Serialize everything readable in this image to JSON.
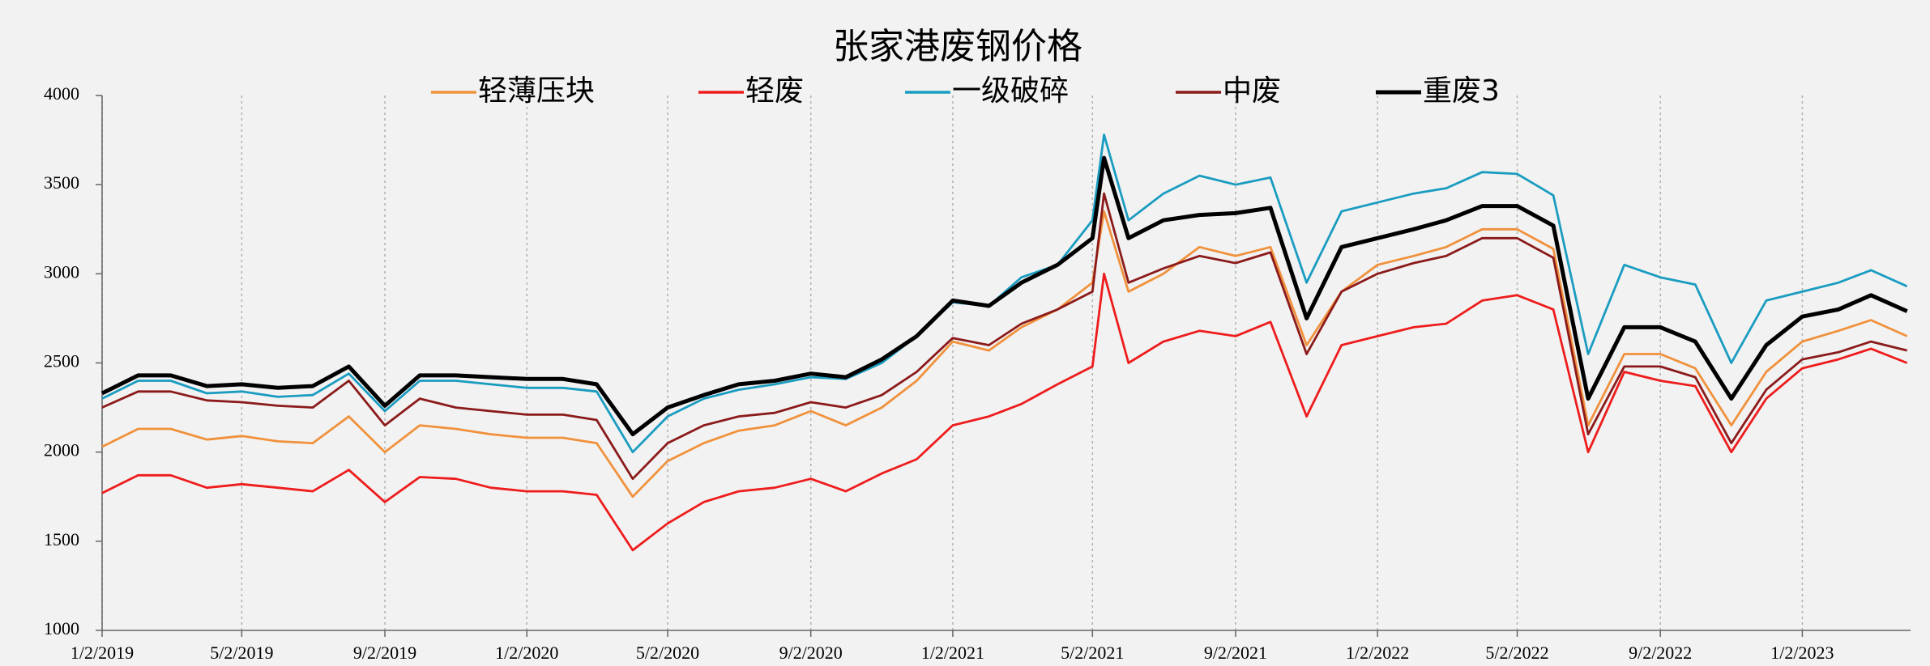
{
  "chart_data": {
    "type": "line",
    "title": "张家港废钢价格",
    "x": [
      "1/2/2019",
      "2/2/2019",
      "3/2/2019",
      "4/2/2019",
      "5/2/2019",
      "6/2/2019",
      "7/2/2019",
      "8/2/2019",
      "9/2/2019",
      "10/2/2019",
      "11/2/2019",
      "12/2/2019",
      "1/2/2020",
      "2/2/2020",
      "3/2/2020",
      "4/2/2020",
      "5/2/2020",
      "6/2/2020",
      "7/2/2020",
      "8/2/2020",
      "9/2/2020",
      "10/2/2020",
      "11/2/2020",
      "12/2/2020",
      "1/2/2021",
      "2/2/2021",
      "3/2/2021",
      "4/2/2021",
      "5/2/2021",
      "5/12/2021",
      "6/2/2021",
      "7/2/2021",
      "8/2/2021",
      "9/2/2021",
      "10/2/2021",
      "11/2/2021",
      "12/2/2021",
      "1/2/2022",
      "2/2/2022",
      "3/2/2022",
      "4/2/2022",
      "5/2/2022",
      "6/2/2022",
      "7/2/2022",
      "8/2/2022",
      "9/2/2022",
      "10/2/2022",
      "11/2/2022",
      "12/2/2022",
      "1/2/2023",
      "2/2/2023",
      "3/2/2023",
      "4/2/2023"
    ],
    "series": [
      {
        "name": "轻薄压块",
        "color": "#f0913c",
        "values": [
          2030,
          2130,
          2130,
          2070,
          2090,
          2060,
          2050,
          2200,
          2000,
          2150,
          2130,
          2100,
          2080,
          2080,
          2050,
          1750,
          1950,
          2050,
          2120,
          2150,
          2230,
          2150,
          2250,
          2400,
          2620,
          2570,
          2700,
          2800,
          2950,
          3350,
          2900,
          3000,
          3150,
          3100,
          3150,
          2600,
          2900,
          3050,
          3100,
          3150,
          3250,
          3250,
          3140,
          2150,
          2550,
          2550,
          2470,
          2150,
          2450,
          2620,
          2680,
          2740,
          2650
        ]
      },
      {
        "name": "轻废",
        "color": "#ee1c1c",
        "values": [
          1770,
          1870,
          1870,
          1800,
          1820,
          1800,
          1780,
          1900,
          1720,
          1860,
          1850,
          1800,
          1780,
          1780,
          1760,
          1450,
          1600,
          1720,
          1780,
          1800,
          1850,
          1780,
          1880,
          1960,
          2150,
          2200,
          2270,
          2380,
          2480,
          3000,
          2500,
          2620,
          2680,
          2650,
          2730,
          2200,
          2600,
          2650,
          2700,
          2720,
          2850,
          2880,
          2800,
          2000,
          2450,
          2400,
          2370,
          2000,
          2300,
          2470,
          2520,
          2580,
          2500
        ]
      },
      {
        "name": "一级破碎",
        "color": "#1a9cc0",
        "values": [
          2300,
          2400,
          2400,
          2330,
          2340,
          2310,
          2320,
          2440,
          2230,
          2400,
          2400,
          2380,
          2360,
          2360,
          2340,
          2000,
          2200,
          2300,
          2350,
          2380,
          2420,
          2410,
          2500,
          2650,
          2840,
          2820,
          2980,
          3050,
          3300,
          3780,
          3300,
          3450,
          3550,
          3500,
          3540,
          2950,
          3350,
          3400,
          3450,
          3480,
          3570,
          3560,
          3440,
          2550,
          3050,
          2980,
          2940,
          2500,
          2850,
          2900,
          2950,
          3020,
          2930
        ]
      },
      {
        "name": "中废",
        "color": "#8b1a1a",
        "values": [
          2250,
          2340,
          2340,
          2290,
          2280,
          2260,
          2250,
          2400,
          2150,
          2300,
          2250,
          2230,
          2210,
          2210,
          2180,
          1850,
          2050,
          2150,
          2200,
          2220,
          2280,
          2250,
          2320,
          2450,
          2640,
          2600,
          2720,
          2800,
          2900,
          3450,
          2950,
          3030,
          3100,
          3060,
          3120,
          2550,
          2900,
          3000,
          3060,
          3100,
          3200,
          3200,
          3090,
          2100,
          2480,
          2480,
          2420,
          2050,
          2350,
          2520,
          2560,
          2620,
          2570
        ]
      },
      {
        "name": "重废3",
        "color": "#000000",
        "values": [
          2330,
          2430,
          2430,
          2370,
          2380,
          2360,
          2370,
          2480,
          2260,
          2430,
          2430,
          2420,
          2410,
          2410,
          2380,
          2100,
          2250,
          2320,
          2380,
          2400,
          2440,
          2420,
          2520,
          2650,
          2850,
          2820,
          2950,
          3050,
          3200,
          3650,
          3200,
          3300,
          3330,
          3340,
          3370,
          2750,
          3150,
          3200,
          3250,
          3300,
          3380,
          3380,
          3270,
          2300,
          2700,
          2700,
          2620,
          2300,
          2600,
          2760,
          2800,
          2880,
          2790
        ]
      }
    ],
    "xlim": [
      "1/2/2019",
      "4/5/2023"
    ],
    "xticks": [
      "1/2/2019",
      "5/2/2019",
      "9/2/2019",
      "1/2/2020",
      "5/2/2020",
      "9/2/2020",
      "1/2/2021",
      "5/2/2021",
      "9/2/2021",
      "1/2/2022",
      "5/2/2022",
      "9/2/2022",
      "1/2/2023"
    ],
    "ylim": [
      1000,
      4000
    ],
    "yticks": [
      1000,
      1500,
      2000,
      2500,
      3000,
      3500,
      4000
    ],
    "grid": "x"
  }
}
